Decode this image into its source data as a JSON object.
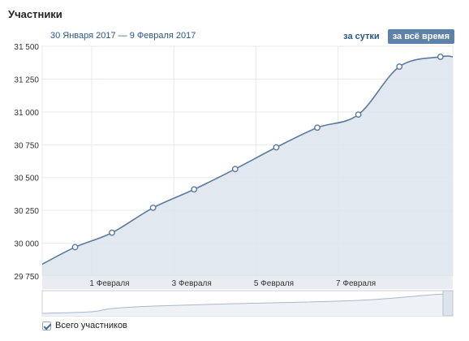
{
  "title": "Участники",
  "date_range": "30 Января 2017 — 9 Февраля 2017",
  "toggles": {
    "daily": "за сутки",
    "all_time": "за всё время"
  },
  "legend": {
    "label": "Всего участников",
    "checked": true
  },
  "colors": {
    "line": "#5b7aa0",
    "fill": "#dde4ec",
    "grid": "#e6e9ee",
    "point_fill": "#ffffff",
    "accent": "#5e81a8"
  },
  "chart_data": {
    "type": "area",
    "title": "",
    "xlabel": "",
    "ylabel": "",
    "ylim": [
      29750,
      31500
    ],
    "yticks": [
      29750,
      30000,
      30250,
      30500,
      30750,
      31000,
      31250,
      31500
    ],
    "ytick_labels": [
      "29 750",
      "30 000",
      "30 250",
      "30 500",
      "30 750",
      "31 000",
      "31 250",
      "31 500"
    ],
    "xticks": [
      {
        "x": 1.5,
        "label": "1 Февраля"
      },
      {
        "x": 3.5,
        "label": "3 Февраля"
      },
      {
        "x": 5.5,
        "label": "5 Февраля"
      },
      {
        "x": 7.5,
        "label": "7 Февраля"
      }
    ],
    "xlim": [
      -0.2,
      9.8
    ],
    "grid": true,
    "series": [
      {
        "name": "",
        "points": [
          [
            -0.2,
            29840
          ],
          [
            0.6,
            29970
          ],
          [
            1.5,
            30080
          ],
          [
            2.5,
            30270
          ],
          [
            3.5,
            30410
          ],
          [
            4.5,
            30565
          ],
          [
            5.5,
            30730
          ],
          [
            6.5,
            30880
          ],
          [
            7.5,
            30980
          ],
          [
            8.5,
            31345
          ],
          [
            9.5,
            31420
          ],
          [
            9.8,
            31420
          ]
        ],
        "markers": [
          [
            0.6,
            29970
          ],
          [
            1.5,
            30080
          ],
          [
            2.5,
            30270
          ],
          [
            3.5,
            30410
          ],
          [
            4.5,
            30565
          ],
          [
            5.5,
            30730
          ],
          [
            6.5,
            30880
          ],
          [
            7.5,
            30980
          ],
          [
            8.5,
            31345
          ],
          [
            9.5,
            31420
          ]
        ]
      }
    ]
  }
}
